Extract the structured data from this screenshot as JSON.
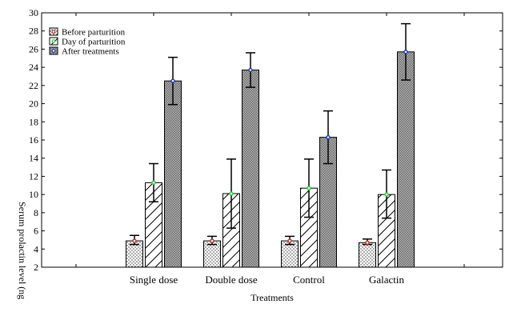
{
  "chart_data": {
    "type": "bar",
    "xlabel": "Treatments",
    "ylabel": "Serum prolactin level (ng",
    "ylim": [
      2,
      30
    ],
    "yticks": [
      2,
      4,
      6,
      8,
      10,
      12,
      14,
      16,
      18,
      20,
      22,
      24,
      26,
      28,
      30
    ],
    "categories": [
      "Single dose",
      "Double dose",
      "Control",
      "Galactin"
    ],
    "series": [
      {
        "name": "Before parturition",
        "pattern": "dots",
        "marker_color": "#c0392b",
        "values": [
          4.9,
          4.9,
          4.9,
          4.7
        ],
        "err_low": [
          4.5,
          4.5,
          4.5,
          4.5
        ],
        "err_high": [
          5.5,
          5.4,
          5.4,
          5.1
        ]
      },
      {
        "name": "Day of parturition",
        "pattern": "diagonal",
        "marker_color": "#2ecc40",
        "values": [
          11.3,
          10.1,
          10.7,
          10.0
        ],
        "err_low": [
          9.2,
          6.3,
          7.5,
          7.4
        ],
        "err_high": [
          13.4,
          13.9,
          13.9,
          12.7
        ]
      },
      {
        "name": "After treatments",
        "pattern": "crosshatch",
        "marker_color": "#1f3fbf",
        "values": [
          22.5,
          23.7,
          16.3,
          25.7
        ],
        "err_low": [
          19.9,
          21.8,
          13.4,
          22.6
        ],
        "err_high": [
          25.1,
          25.6,
          19.2,
          28.8
        ]
      }
    ],
    "legend_position": "top-left",
    "grid": false
  }
}
